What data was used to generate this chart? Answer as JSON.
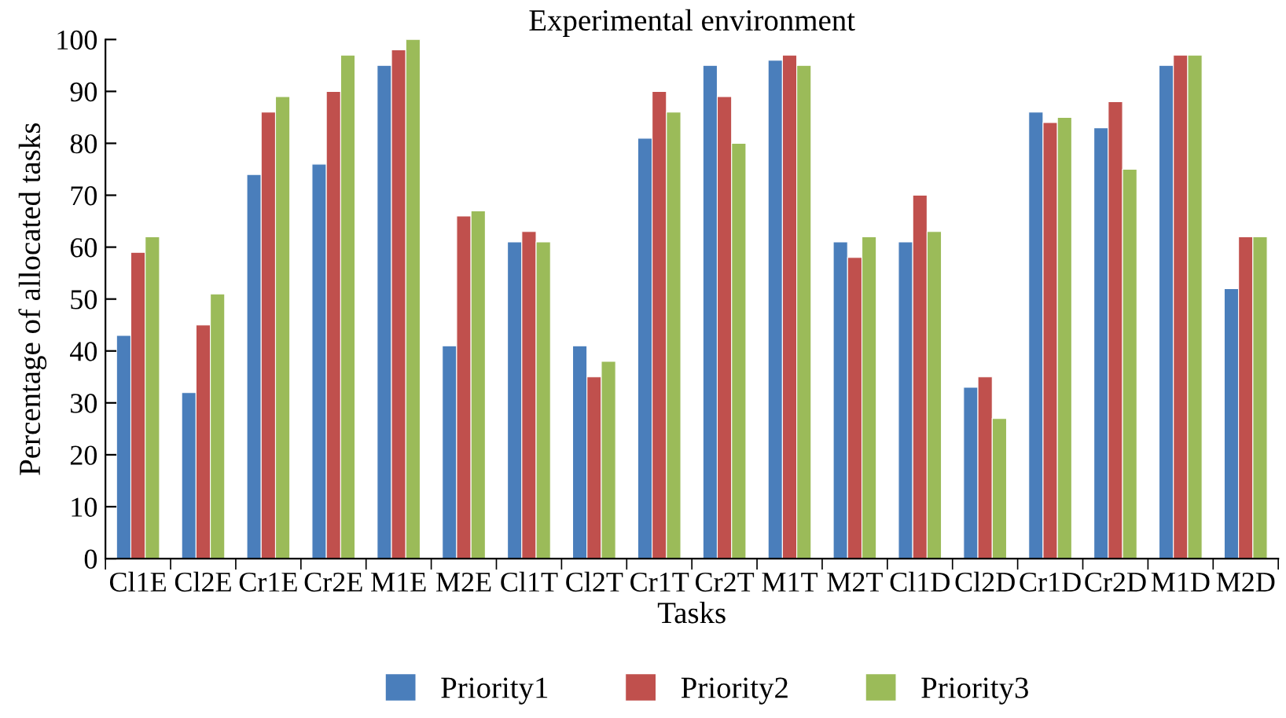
{
  "chart_data": {
    "type": "bar",
    "title": "Experimental environment",
    "xlabel": "Tasks",
    "ylabel": "Percentage of allocated tasks",
    "categories": [
      "Cl1E",
      "Cl2E",
      "Cr1E",
      "Cr2E",
      "M1E",
      "M2E",
      "Cl1T",
      "Cl2T",
      "Cr1T",
      "Cr2T",
      "M1T",
      "M2T",
      "Cl1D",
      "Cl2D",
      "Cr1D",
      "Cr2D",
      "M1D",
      "M2D"
    ],
    "series": [
      {
        "name": "Priority1",
        "color": "#4a7ebb",
        "values": [
          43,
          32,
          74,
          76,
          95,
          41,
          61,
          41,
          81,
          95,
          96,
          61,
          61,
          33,
          86,
          83,
          95,
          52
        ]
      },
      {
        "name": "Priority2",
        "color": "#c0504d",
        "values": [
          59,
          45,
          86,
          90,
          98,
          66,
          63,
          35,
          90,
          89,
          97,
          58,
          70,
          35,
          84,
          88,
          97,
          62
        ]
      },
      {
        "name": "Priority3",
        "color": "#9bbb59",
        "values": [
          62,
          51,
          89,
          97,
          100,
          67,
          61,
          38,
          86,
          80,
          95,
          62,
          63,
          27,
          85,
          75,
          97,
          62
        ]
      }
    ],
    "ylim": [
      0,
      100
    ],
    "yticks": [
      0,
      10,
      20,
      30,
      40,
      50,
      60,
      70,
      80,
      90,
      100
    ],
    "grid": false,
    "legend": "bottom"
  }
}
